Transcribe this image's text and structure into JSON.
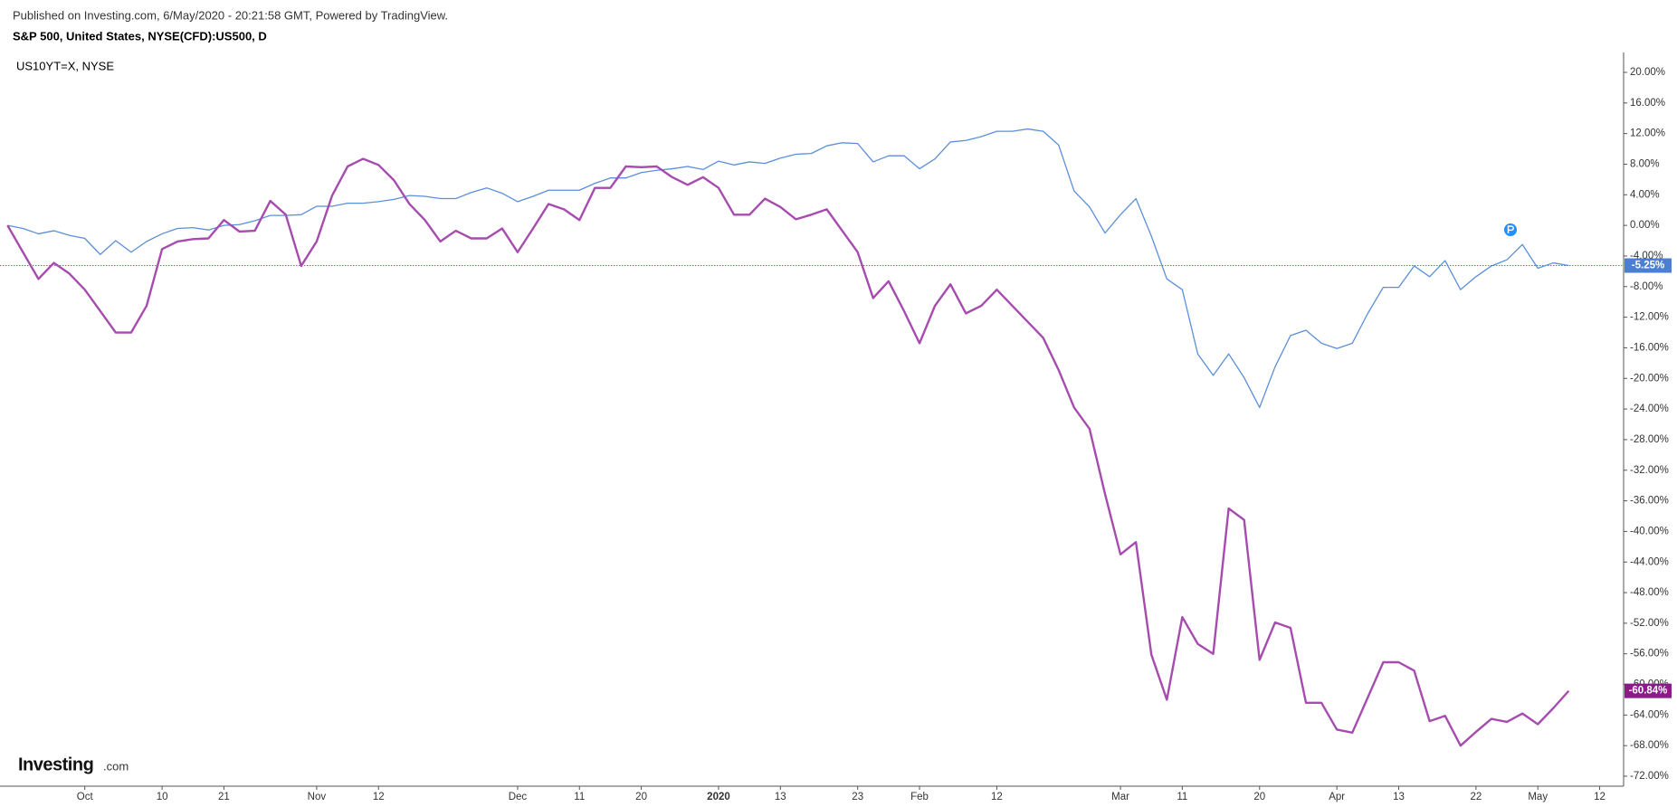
{
  "chart_data": {
    "type": "line",
    "subtitle": "Published on Investing.com, 6/May/2020 - 20:21:58 GMT, Powered by TradingView.",
    "watermark": [
      "Investing",
      ".com"
    ],
    "categories": [
      null,
      null,
      null,
      null,
      null,
      "Oct",
      null,
      null,
      null,
      null,
      "10",
      null,
      null,
      null,
      "21",
      null,
      null,
      null,
      null,
      null,
      "Nov",
      null,
      null,
      null,
      "12",
      null,
      null,
      null,
      null,
      null,
      null,
      null,
      null,
      "Dec",
      null,
      null,
      null,
      "11",
      null,
      null,
      null,
      "20",
      null,
      null,
      null,
      null,
      "2020",
      null,
      null,
      null,
      "13",
      null,
      null,
      null,
      null,
      "23",
      null,
      null,
      null,
      "Feb",
      null,
      null,
      null,
      null,
      "12",
      null,
      null,
      null,
      null,
      null,
      null,
      null,
      "Mar",
      null,
      null,
      null,
      "11",
      null,
      null,
      null,
      null,
      "20",
      null,
      null,
      null,
      null,
      "Apr",
      null,
      null,
      null,
      "13",
      null,
      null,
      null,
      null,
      "22",
      null,
      null,
      null,
      "May",
      null,
      null,
      null,
      "12"
    ],
    "series": [
      {
        "name": "S&P 500, United States, NYSE(CFD):US500, D",
        "color": "#5b8fd9",
        "width": 1.3,
        "values": [
          0,
          -0.4,
          -1.1,
          -0.7,
          -1.3,
          -1.7,
          -3.8,
          -2.0,
          -3.5,
          -2.1,
          -1.1,
          -0.4,
          -0.3,
          -0.6,
          0,
          0.1,
          0.6,
          1.3,
          1.3,
          1.4,
          2.5,
          2.5,
          2.9,
          2.9,
          3.1,
          3.4,
          3.9,
          3.8,
          3.5,
          3.5,
          4.3,
          4.9,
          4.2,
          3.1,
          3.8,
          4.6,
          4.6,
          4.6,
          5.5,
          6.2,
          6.2,
          6.9,
          7.2,
          7.4,
          7.7,
          7.3,
          8.4,
          7.9,
          8.3,
          8.1,
          8.8,
          9.3,
          9.4,
          10.4,
          10.8,
          10.7,
          8.3,
          9.1,
          9.1,
          7.4,
          8.7,
          10.9,
          11.1,
          11.6,
          12.3,
          12.3,
          12.6,
          12.3,
          10.5,
          4.5,
          2.4,
          -1.0,
          1.4,
          3.5,
          -1.4,
          -7.0,
          -8.4,
          -16.8,
          -19.6,
          -16.8,
          -19.9,
          -23.8,
          -18.5,
          -14.4,
          -13.7,
          -15.4,
          -16.1,
          -15.4,
          -11.5,
          -8.1,
          -8.1,
          -5.3,
          -6.7,
          -4.6,
          -8.4,
          -6.7,
          -5.3,
          -4.5,
          -2.5,
          -5.6,
          -4.9,
          -5.25,
          null,
          null
        ],
        "last_label": "-5.25%",
        "label_color": "#4a7fd4"
      },
      {
        "name": "US10YT=X, NYSE",
        "color": "#a64cae",
        "width": 2.4,
        "values": [
          0,
          -3.5,
          -7.0,
          -4.9,
          -6.3,
          -8.4,
          -11.2,
          -14.0,
          -14.0,
          -10.5,
          -3.1,
          -2.1,
          -1.8,
          -1.7,
          0.7,
          -0.8,
          -0.7,
          3.2,
          1.4,
          -5.3,
          -2.1,
          3.9,
          7.7,
          8.7,
          7.9,
          5.9,
          2.8,
          0.7,
          -2.1,
          -0.7,
          -1.7,
          -1.7,
          -0.4,
          -3.5,
          -0.4,
          2.8,
          2.1,
          0.7,
          4.9,
          4.9,
          7.7,
          7.6,
          7.7,
          6.3,
          5.3,
          6.3,
          4.9,
          1.4,
          1.4,
          3.5,
          2.4,
          0.8,
          1.4,
          2.1,
          -0.7,
          -3.5,
          -9.5,
          -7.3,
          -11.2,
          -15.4,
          -10.5,
          -7.7,
          -11.5,
          -10.5,
          -8.4,
          -10.5,
          -12.6,
          -14.7,
          -18.9,
          -23.8,
          -26.6,
          -35.1,
          -43.0,
          -41.4,
          -56.1,
          -62.0,
          -51.2,
          -54.7,
          -56.0,
          -37.0,
          -38.5,
          -56.8,
          -51.9,
          -52.6,
          -62.4,
          -62.4,
          -65.9,
          -66.3,
          -61.7,
          -57.1,
          -57.1,
          -58.2,
          -64.8,
          -64.1,
          -68.0,
          -66.2,
          -64.5,
          -64.9,
          -63.8,
          -65.2,
          -63.1,
          -60.84,
          null,
          null
        ],
        "last_label": "-60.84%",
        "label_color": "#8b1a8b"
      }
    ],
    "ylim": [
      -73.3,
      21.3
    ],
    "yticks": [
      {
        "value": 20,
        "label": "20.00%"
      },
      {
        "value": 16,
        "label": "16.00%"
      },
      {
        "value": 12,
        "label": "12.00%"
      },
      {
        "value": 8,
        "label": "8.00%"
      },
      {
        "value": 4,
        "label": "4.00%"
      },
      {
        "value": 0,
        "label": "0.00%"
      },
      {
        "value": -4,
        "label": "-4.00%"
      },
      {
        "value": -8,
        "label": "-8.00%"
      },
      {
        "value": -12,
        "label": "-12.00%"
      },
      {
        "value": -16,
        "label": "-16.00%"
      },
      {
        "value": -20,
        "label": "-20.00%"
      },
      {
        "value": -24,
        "label": "-24.00%"
      },
      {
        "value": -28,
        "label": "-28.00%"
      },
      {
        "value": -32,
        "label": "-32.00%"
      },
      {
        "value": -36,
        "label": "-36.00%"
      },
      {
        "value": -40,
        "label": "-40.00%"
      },
      {
        "value": -44,
        "label": "-44.00%"
      },
      {
        "value": -48,
        "label": "-48.00%"
      },
      {
        "value": -52,
        "label": "-52.00%"
      },
      {
        "value": -56,
        "label": "-56.00%"
      },
      {
        "value": -60,
        "label": "-60.00%"
      },
      {
        "value": -64,
        "label": "-64.00%"
      },
      {
        "value": -68,
        "label": "-68.00%"
      },
      {
        "value": -72,
        "label": "-72.00%"
      }
    ],
    "grid": false
  }
}
